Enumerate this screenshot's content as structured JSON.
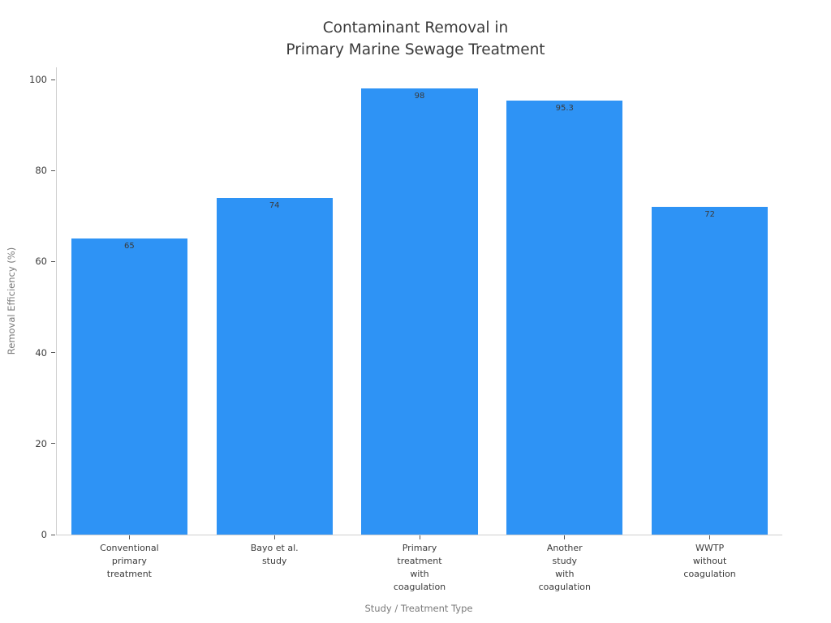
{
  "chart_data": {
    "type": "bar",
    "title": "Contaminant Removal in\nPrimary Marine Sewage Treatment",
    "title_lines": [
      "Contaminant Removal in",
      "Primary Marine Sewage Treatment"
    ],
    "categories": [
      "Conventional\nprimary\ntreatment",
      "Bayo et al.\nstudy",
      "Primary\ntreatment\nwith\ncoagulation",
      "Another\nstudy\nwith\ncoagulation",
      "WWTP\nwithout\ncoagulation"
    ],
    "values": [
      65,
      74,
      98,
      95.3,
      72
    ],
    "value_labels": [
      "65",
      "74",
      "98",
      "95.3",
      "72"
    ],
    "xlabel": "Study / Treatment Type",
    "ylabel": "Removal Efficiency (%)",
    "ylim": [
      0,
      100
    ],
    "yticks": [
      0,
      20,
      40,
      60,
      80,
      100
    ],
    "bar_color": "#2e93f5",
    "value_label_color": "#3a3a3a",
    "axis_line_color": "#cfcfcf",
    "grid": false,
    "legend": "none",
    "background": "#ffffff"
  }
}
